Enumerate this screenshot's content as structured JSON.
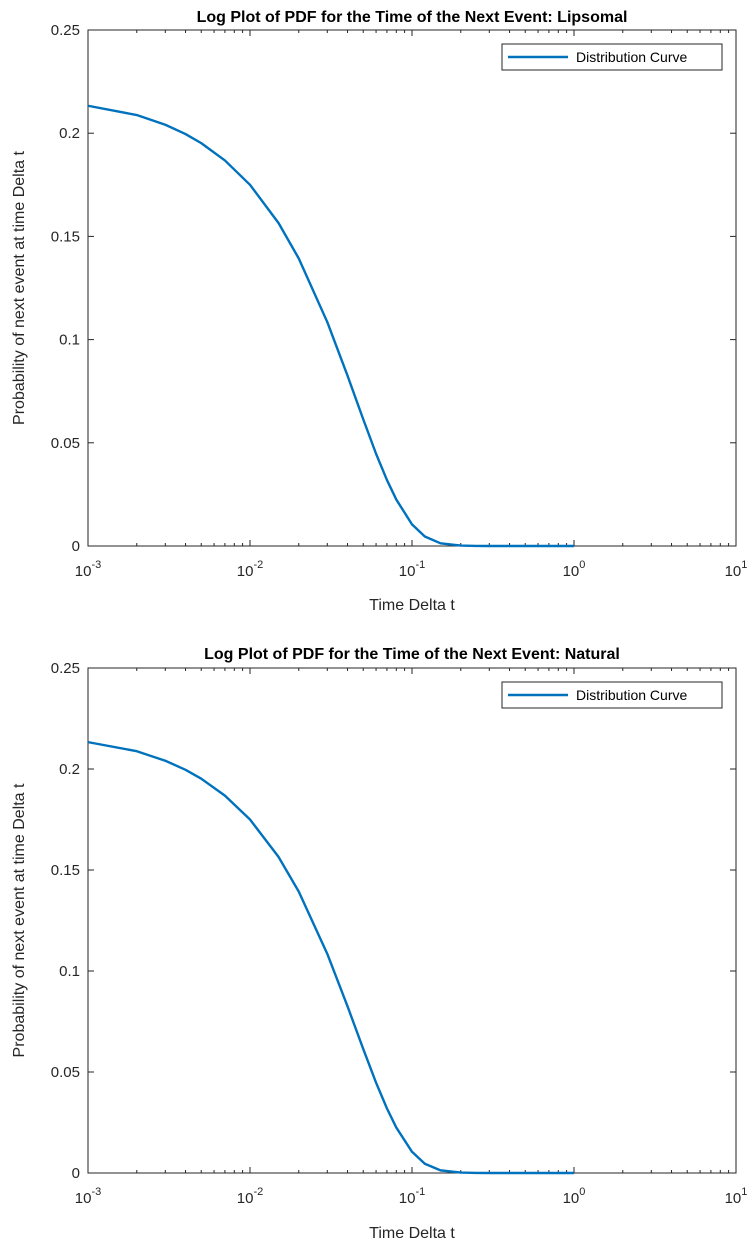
{
  "chart_data": [
    {
      "type": "line",
      "title": "Log Plot of PDF for the Time of the Next Event: Lipsomal",
      "xlabel": "Time Delta t",
      "ylabel": "Probability of next event at time Delta t",
      "xscale": "log",
      "xlim": [
        0.001,
        10
      ],
      "ylim": [
        0,
        0.25
      ],
      "xticks": [
        0.001,
        0.01,
        0.1,
        1,
        10
      ],
      "xtick_labels": [
        {
          "base": "10",
          "exp": "-3"
        },
        {
          "base": "10",
          "exp": "-2"
        },
        {
          "base": "10",
          "exp": "-1"
        },
        {
          "base": "10",
          "exp": "0"
        },
        {
          "base": "10",
          "exp": "1"
        }
      ],
      "yticks": [
        "0",
        "0.05",
        "0.1",
        "0.15",
        "0.2",
        "0.25"
      ],
      "ytick_values": [
        0,
        0.05,
        0.1,
        0.15,
        0.2,
        0.25
      ],
      "legend_position": "top-right",
      "grid": false,
      "series": [
        {
          "name": "Distribution Curve",
          "color": "#0072BD",
          "x": [
            0.001,
            0.002,
            0.003,
            0.004,
            0.005,
            0.007,
            0.01,
            0.015,
            0.02,
            0.03,
            0.04,
            0.05,
            0.06,
            0.07,
            0.08,
            0.1,
            0.12,
            0.15,
            0.2,
            0.25,
            0.3,
            0.5,
            0.7,
            1.0
          ],
          "y": [
            0.2133,
            0.2088,
            0.2041,
            0.1996,
            0.1952,
            0.1868,
            0.175,
            0.1565,
            0.1393,
            0.1085,
            0.0825,
            0.0614,
            0.0447,
            0.032,
            0.0225,
            0.0105,
            0.0046,
            0.0013,
            0.0002,
            2e-05,
            0.0,
            0.0,
            0.0,
            0.0
          ]
        }
      ]
    },
    {
      "type": "line",
      "title": "Log Plot of PDF for the Time of the Next Event: Natural",
      "xlabel": "Time Delta t",
      "ylabel": "Probability of next event at time Delta t",
      "xscale": "log",
      "xlim": [
        0.001,
        10
      ],
      "ylim": [
        0,
        0.25
      ],
      "xticks": [
        0.001,
        0.01,
        0.1,
        1,
        10
      ],
      "xtick_labels": [
        {
          "base": "10",
          "exp": "-3"
        },
        {
          "base": "10",
          "exp": "-2"
        },
        {
          "base": "10",
          "exp": "-1"
        },
        {
          "base": "10",
          "exp": "0"
        },
        {
          "base": "10",
          "exp": "1"
        }
      ],
      "yticks": [
        "0",
        "0.05",
        "0.1",
        "0.15",
        "0.2",
        "0.25"
      ],
      "ytick_values": [
        0,
        0.05,
        0.1,
        0.15,
        0.2,
        0.25
      ],
      "legend_position": "top-right",
      "grid": false,
      "series": [
        {
          "name": "Distribution Curve",
          "color": "#0072BD",
          "x": [
            0.001,
            0.002,
            0.003,
            0.004,
            0.005,
            0.007,
            0.01,
            0.015,
            0.02,
            0.03,
            0.04,
            0.05,
            0.06,
            0.07,
            0.08,
            0.1,
            0.12,
            0.15,
            0.2,
            0.25,
            0.3,
            0.5,
            0.7,
            1.0
          ],
          "y": [
            0.2133,
            0.2088,
            0.2041,
            0.1996,
            0.1952,
            0.1868,
            0.175,
            0.1565,
            0.1393,
            0.1085,
            0.0825,
            0.0614,
            0.0447,
            0.032,
            0.0225,
            0.0105,
            0.0046,
            0.0013,
            0.0002,
            2e-05,
            0.0,
            0.0,
            0.0,
            0.0
          ]
        }
      ]
    }
  ]
}
